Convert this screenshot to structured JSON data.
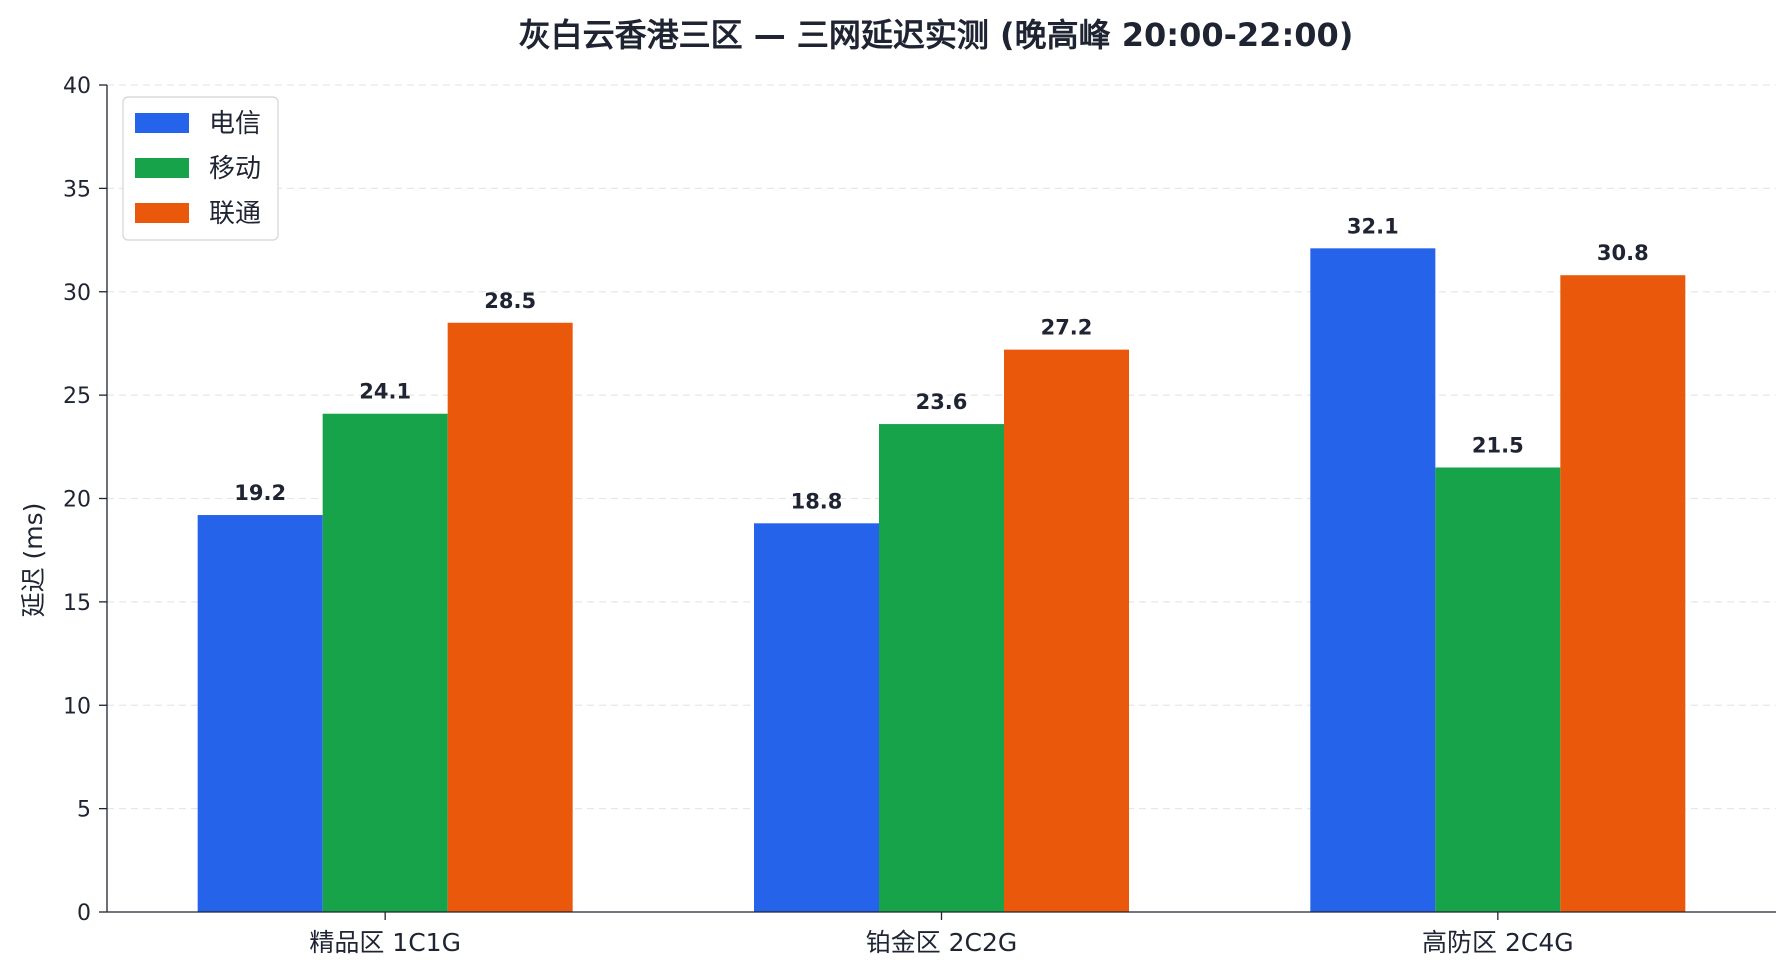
{
  "chart_data": {
    "type": "bar",
    "title": "灰白云香港三区 — 三网延迟实测 (晚高峰 20:00-22:00)",
    "xlabel": "",
    "ylabel": "延迟 (ms)",
    "ylim": [
      0,
      40
    ],
    "yticks": [
      0,
      5,
      10,
      15,
      20,
      25,
      30,
      35,
      40
    ],
    "grid": true,
    "legend_position": "top-left",
    "categories": [
      "精品区 1C1G",
      "铂金区 2C2G",
      "高防区 2C4G"
    ],
    "series": [
      {
        "name": "电信",
        "color": "#2563eb",
        "values": [
          19.2,
          18.8,
          32.1
        ]
      },
      {
        "name": "移动",
        "color": "#16a34a",
        "values": [
          24.1,
          23.6,
          21.5
        ]
      },
      {
        "name": "联通",
        "color": "#ea580c",
        "values": [
          28.5,
          27.2,
          30.8
        ]
      }
    ]
  }
}
